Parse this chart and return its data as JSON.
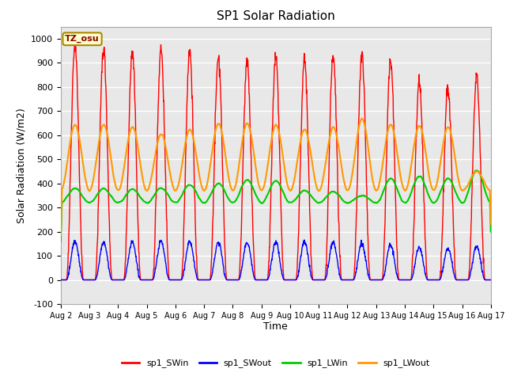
{
  "title": "SP1 Solar Radiation",
  "xlabel": "Time",
  "ylabel": "Solar Radiation (W/m2)",
  "ylim": [
    -100,
    1050
  ],
  "xlim_days": [
    0,
    15
  ],
  "plot_bg_color": "#e8e8e8",
  "fig_bg_color": "#ffffff",
  "grid_color": "#ffffff",
  "tz_label": "TZ_osu",
  "legend_entries": [
    "sp1_SWin",
    "sp1_SWout",
    "sp1_LWin",
    "sp1_LWout"
  ],
  "line_colors": [
    "#ff0000",
    "#0000ff",
    "#00cc00",
    "#ff9900"
  ],
  "yticks": [
    -100,
    0,
    100,
    200,
    300,
    400,
    500,
    600,
    700,
    800,
    900,
    1000
  ],
  "xtick_labels": [
    "Aug 2",
    "Aug 3",
    "Aug 4",
    "Aug 5",
    "Aug 6",
    "Aug 7",
    "Aug 8",
    "Aug 9",
    "Aug 10",
    "Aug 11",
    "Aug 12",
    "Aug 13",
    "Aug 14",
    "Aug 15",
    "Aug 16",
    "Aug 17"
  ],
  "num_days": 15,
  "sw_in_peaks": [
    980,
    960,
    940,
    955,
    950,
    920,
    910,
    920,
    915,
    930,
    940,
    920,
    820,
    790,
    850
  ],
  "sw_out_peaks": [
    160,
    158,
    155,
    160,
    158,
    155,
    155,
    155,
    157,
    155,
    150,
    145,
    135,
    130,
    140
  ],
  "lw_in_base": 320,
  "lw_in_peaks": [
    380,
    378,
    375,
    380,
    395,
    400,
    415,
    410,
    370,
    365,
    350,
    420,
    430,
    420,
    455
  ],
  "lw_out_base": 370,
  "lw_out_peaks": [
    645,
    645,
    635,
    605,
    625,
    650,
    650,
    645,
    625,
    635,
    670,
    645,
    640,
    635,
    450
  ]
}
